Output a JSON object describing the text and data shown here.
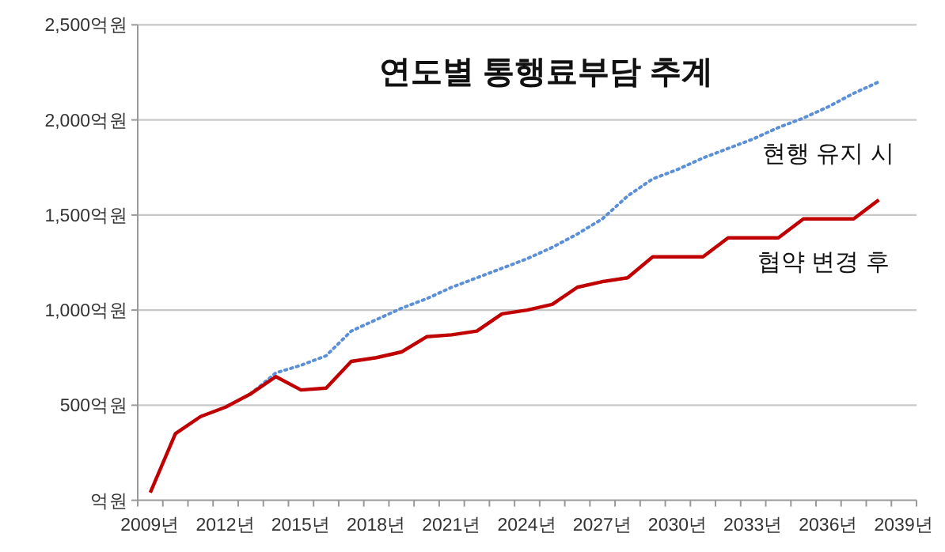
{
  "chart_data": {
    "type": "line",
    "title": "연도별 통행료부담 추계",
    "categories": [
      "2009년",
      null,
      null,
      "2012년",
      null,
      null,
      "2015년",
      null,
      null,
      "2018년",
      null,
      null,
      "2021년",
      null,
      null,
      "2024년",
      null,
      null,
      "2027년",
      null,
      null,
      "2030년",
      null,
      null,
      "2033년",
      null,
      null,
      "2036년",
      null,
      null,
      "2039년"
    ],
    "series": [
      {
        "name": "현행 유지 시",
        "color": "#5b8fd6",
        "line_style": "dotted",
        "values": [
          null,
          null,
          null,
          null,
          560,
          670,
          710,
          760,
          890,
          950,
          1010,
          1060,
          1120,
          1170,
          1220,
          1270,
          1330,
          1400,
          1480,
          1600,
          1690,
          1740,
          1800,
          1850,
          1900,
          1960,
          2010,
          2070,
          2140,
          2200,
          null
        ]
      },
      {
        "name": "협약 변경 후",
        "color": "#c00000",
        "line_style": "solid",
        "values": [
          40,
          350,
          440,
          490,
          560,
          650,
          580,
          590,
          730,
          750,
          780,
          860,
          870,
          890,
          980,
          1000,
          1030,
          1120,
          1150,
          1170,
          1280,
          1280,
          1280,
          1380,
          1380,
          1380,
          1480,
          1480,
          1480,
          1580,
          null
        ]
      }
    ],
    "ylim": [
      0,
      2500
    ],
    "yticks": [
      {
        "value": 0,
        "label": "억원"
      },
      {
        "value": 500,
        "label": "500억원"
      },
      {
        "value": 1000,
        "label": "1,000억원"
      },
      {
        "value": 1500,
        "label": "1,500억원"
      },
      {
        "value": 2000,
        "label": "2,000억원"
      },
      {
        "value": 2500,
        "label": "2,500억원"
      }
    ],
    "grid": "y",
    "marker": "none"
  }
}
